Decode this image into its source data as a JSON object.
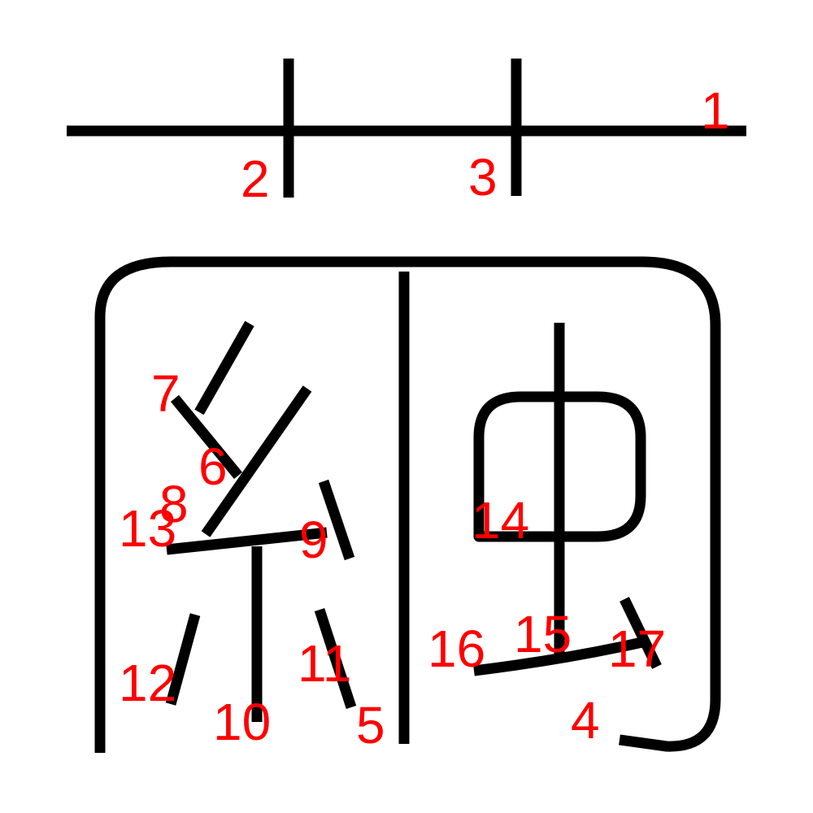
{
  "diagram": {
    "stroke_color": "#000000",
    "label_color": "#ff0000",
    "background": "#ffffff",
    "stroke_order_labels": [
      "1",
      "2",
      "3",
      "4",
      "5",
      "6",
      "7",
      "8",
      "9",
      "10",
      "11",
      "12",
      "13",
      "14",
      "15",
      "16",
      "17"
    ]
  }
}
